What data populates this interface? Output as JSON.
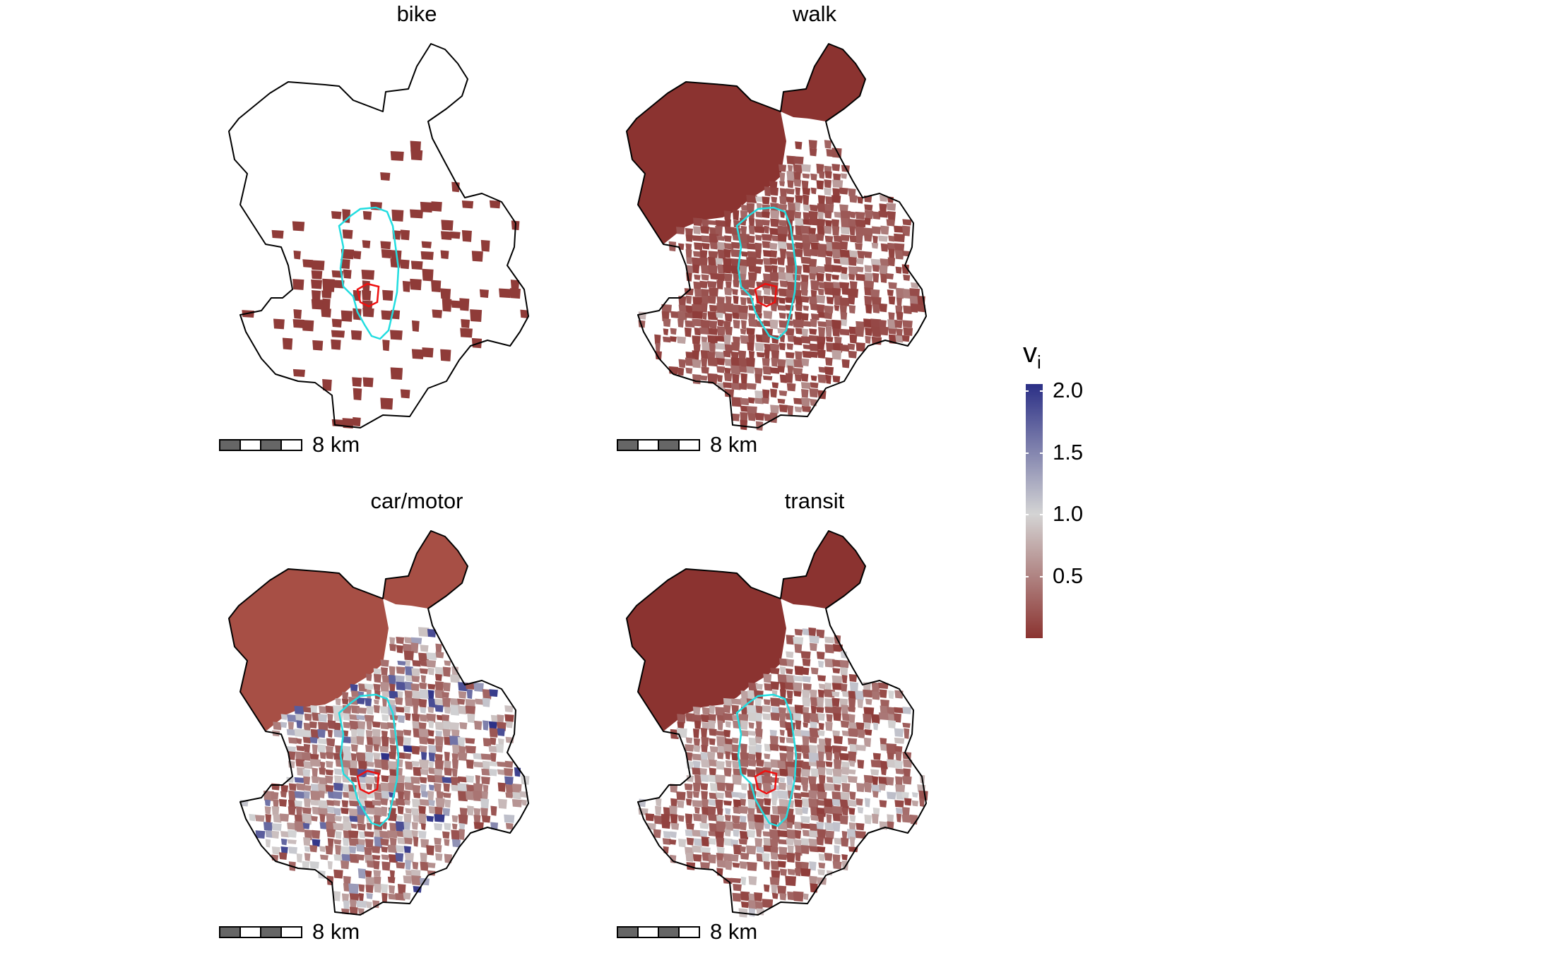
{
  "panels": [
    {
      "title": "bike",
      "scale_label": "8 km",
      "fill_mode": "sparse"
    },
    {
      "title": "walk",
      "scale_label": "8 km",
      "fill_mode": "walk"
    },
    {
      "title": "car/motor",
      "scale_label": "8 km",
      "fill_mode": "car"
    },
    {
      "title": "transit",
      "scale_label": "8 km",
      "fill_mode": "transit"
    }
  ],
  "legend": {
    "title": "v",
    "title_subscript": "i",
    "ticks": [
      {
        "value": 2.0,
        "label": "2.0"
      },
      {
        "value": 1.5,
        "label": "1.5"
      },
      {
        "value": 1.0,
        "label": "1.0"
      },
      {
        "value": 0.5,
        "label": "0.5"
      }
    ],
    "range": [
      0.0,
      2.05
    ],
    "colors": {
      "low": "#8b3330",
      "mid": "#d4d4d4",
      "high": "#2b2f86"
    }
  },
  "colors": {
    "boundary": "#000000",
    "inner_ring": "#22dde0",
    "center": "#ee1111",
    "fill_dark_red": "#8b3330"
  }
}
